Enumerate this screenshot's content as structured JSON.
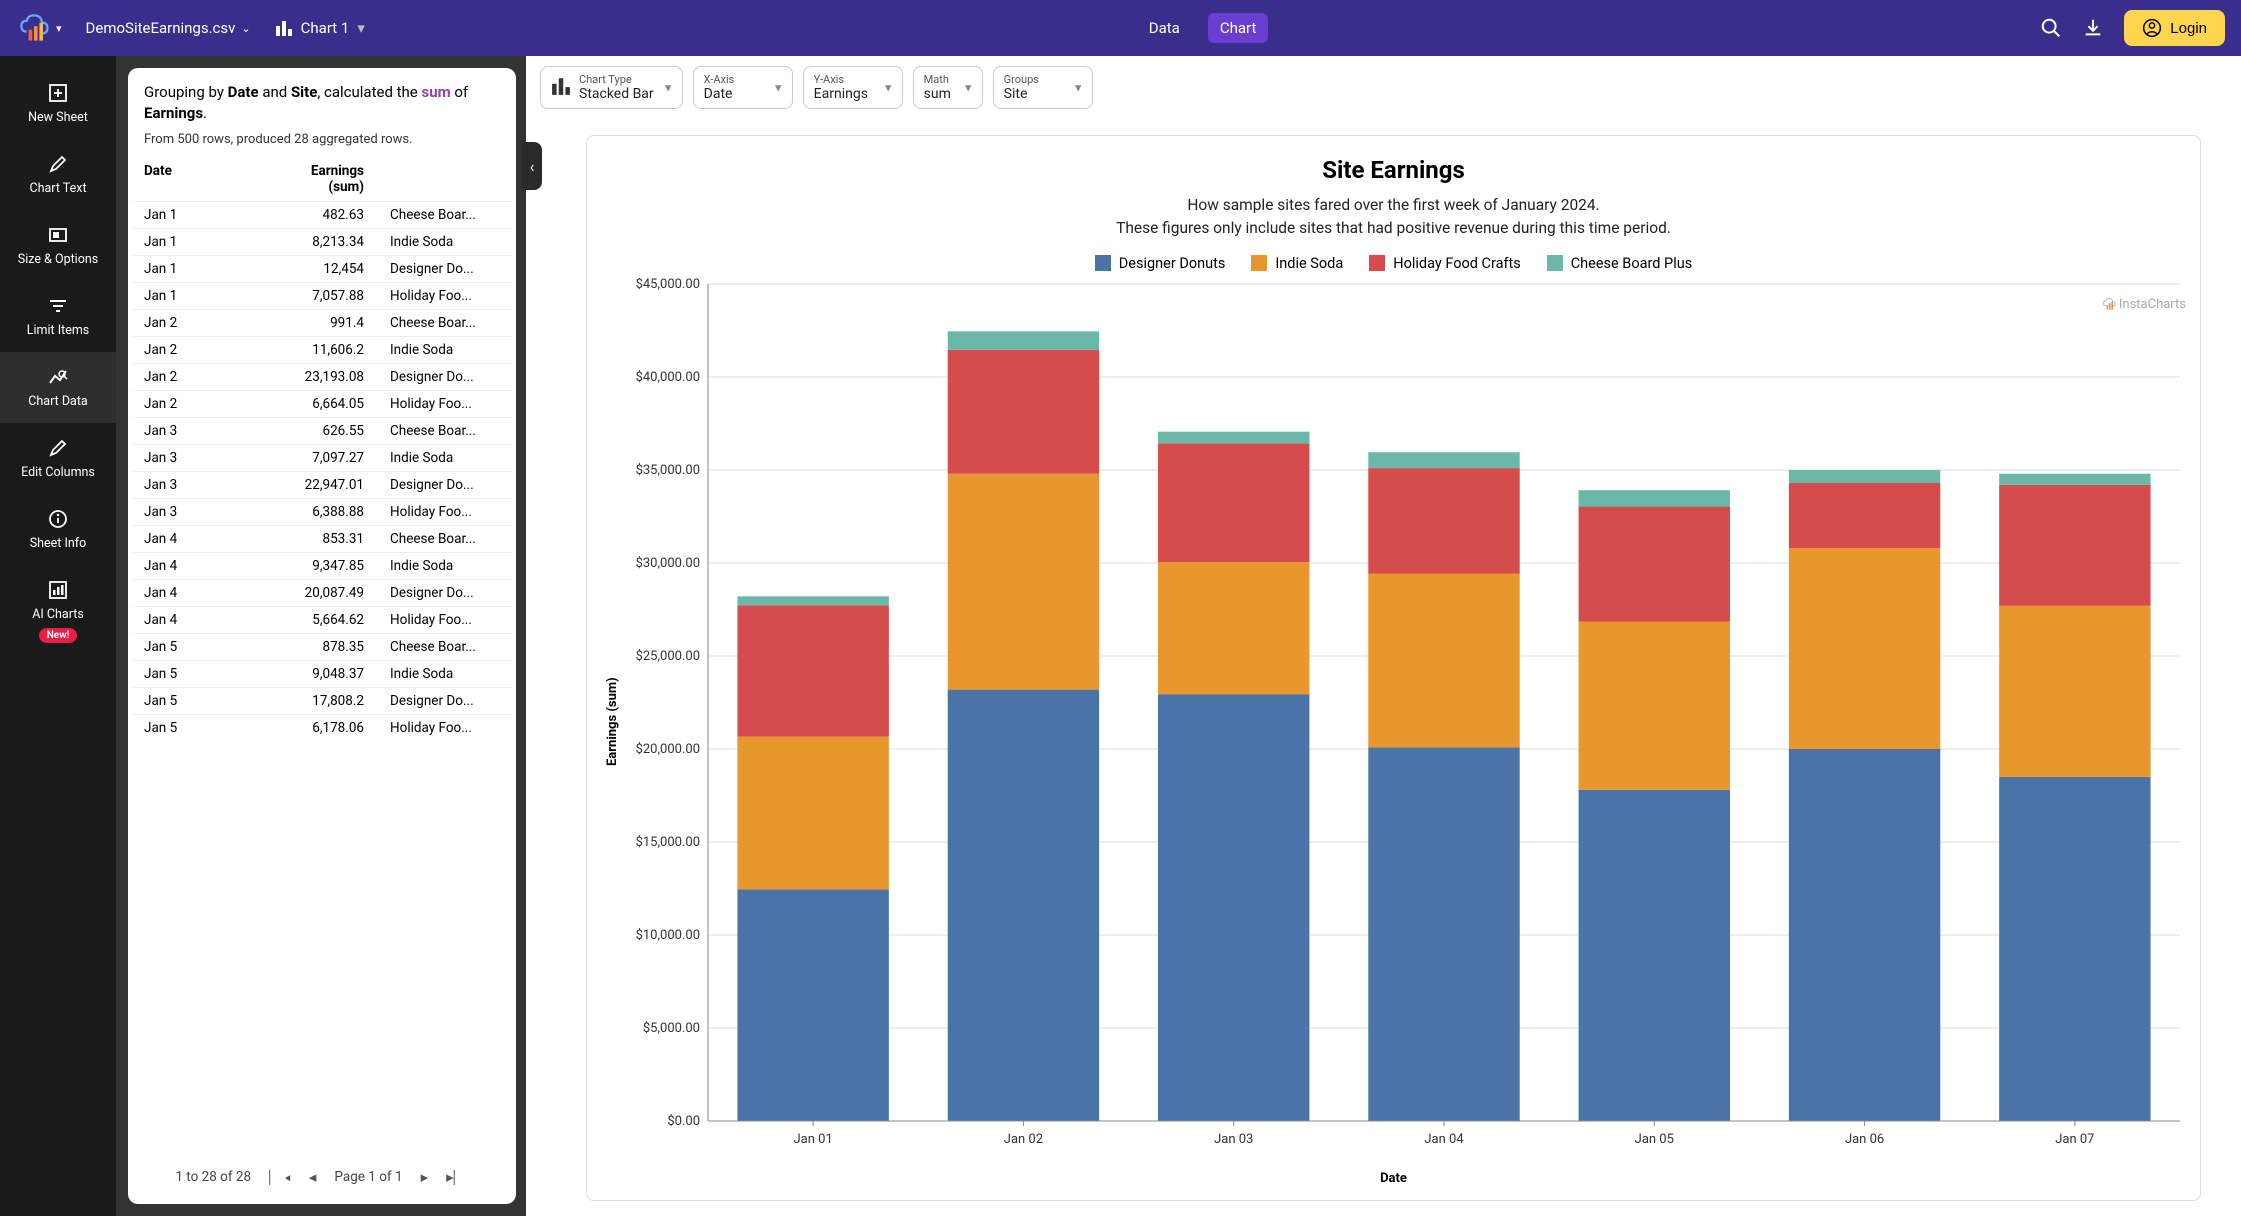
{
  "header": {
    "filename": "DemoSiteEarnings.csv",
    "chart_name": "Chart 1",
    "nav": {
      "data": "Data",
      "chart": "Chart"
    },
    "login": "Login"
  },
  "sidebar": [
    {
      "label": "New Sheet",
      "icon": "plus-sheet"
    },
    {
      "label": "Chart Text",
      "icon": "pencil"
    },
    {
      "label": "Size & Options",
      "icon": "aspect"
    },
    {
      "label": "Limit Items",
      "icon": "filter"
    },
    {
      "label": "Chart Data",
      "icon": "chart-data",
      "active": true
    },
    {
      "label": "Edit Columns",
      "icon": "pencil"
    },
    {
      "label": "Sheet Info",
      "icon": "info"
    },
    {
      "label": "AI Charts",
      "icon": "ai-chart",
      "badge": "New!"
    }
  ],
  "summary": {
    "pre": "Grouping by ",
    "b1": "Date",
    "and": " and ",
    "b2": "Site",
    "mid": ", calculated the ",
    "sum": "sum",
    "post": " of ",
    "b3": "Earnings",
    "dot": ".",
    "sub": "From 500 rows, produced 28 aggregated rows."
  },
  "table": {
    "headers": {
      "c1": "Date",
      "c2a": "Earnings",
      "c2b": "(sum)",
      "c3": ""
    },
    "rows": [
      [
        "Jan 1",
        "482.63",
        "Cheese Boar..."
      ],
      [
        "Jan 1",
        "8,213.34",
        "Indie Soda"
      ],
      [
        "Jan 1",
        "12,454",
        "Designer Do..."
      ],
      [
        "Jan 1",
        "7,057.88",
        "Holiday Foo..."
      ],
      [
        "Jan 2",
        "991.4",
        "Cheese Boar..."
      ],
      [
        "Jan 2",
        "11,606.2",
        "Indie Soda"
      ],
      [
        "Jan 2",
        "23,193.08",
        "Designer Do..."
      ],
      [
        "Jan 2",
        "6,664.05",
        "Holiday Foo..."
      ],
      [
        "Jan 3",
        "626.55",
        "Cheese Boar..."
      ],
      [
        "Jan 3",
        "7,097.27",
        "Indie Soda"
      ],
      [
        "Jan 3",
        "22,947.01",
        "Designer Do..."
      ],
      [
        "Jan 3",
        "6,388.88",
        "Holiday Foo..."
      ],
      [
        "Jan 4",
        "853.31",
        "Cheese Boar..."
      ],
      [
        "Jan 4",
        "9,347.85",
        "Indie Soda"
      ],
      [
        "Jan 4",
        "20,087.49",
        "Designer Do..."
      ],
      [
        "Jan 4",
        "5,664.62",
        "Holiday Foo..."
      ],
      [
        "Jan 5",
        "878.35",
        "Cheese Boar..."
      ],
      [
        "Jan 5",
        "9,048.37",
        "Indie Soda"
      ],
      [
        "Jan 5",
        "17,808.2",
        "Designer Do..."
      ],
      [
        "Jan 5",
        "6,178.06",
        "Holiday Foo..."
      ]
    ],
    "pagination": {
      "range": "1 to 28 of 28",
      "page": "Page 1 of 1"
    }
  },
  "controls": {
    "chart_type": {
      "label": "Chart Type",
      "value": "Stacked Bar"
    },
    "x_axis": {
      "label": "X-Axis",
      "value": "Date"
    },
    "y_axis": {
      "label": "Y-Axis",
      "value": "Earnings"
    },
    "math": {
      "label": "Math",
      "value": "sum"
    },
    "groups": {
      "label": "Groups",
      "value": "Site"
    }
  },
  "chart": {
    "title": "Site Earnings",
    "subtitle_l1": "How sample sites fared over the first week of January 2024.",
    "subtitle_l2": "These figures only include sites that had positive revenue during this time period.",
    "watermark": "InstaCharts",
    "y_label": "Earnings (sum)",
    "x_label": "Date",
    "type": "stacked-bar",
    "categories": [
      "Jan 01",
      "Jan 02",
      "Jan 03",
      "Jan 04",
      "Jan 05",
      "Jan 06",
      "Jan 07"
    ],
    "series": [
      {
        "name": "Designer Donuts",
        "color": "#4a74a8",
        "values": [
          12454,
          23193,
          22947,
          20087,
          17808,
          20000,
          18500
        ]
      },
      {
        "name": "Indie Soda",
        "color": "#e8972f",
        "values": [
          8213,
          11606,
          7097,
          9348,
          9048,
          10800,
          9200
        ]
      },
      {
        "name": "Holiday Food Crafts",
        "color": "#d64b4b",
        "values": [
          7058,
          6664,
          6389,
          5665,
          6178,
          3500,
          6500
        ]
      },
      {
        "name": "Cheese Board Plus",
        "color": "#6bb8a8",
        "values": [
          483,
          991,
          627,
          853,
          878,
          700,
          600
        ]
      }
    ],
    "ylim": [
      0,
      45000
    ],
    "ytick_step": 5000,
    "ytick_labels": [
      "$0.00",
      "$5,000.00",
      "$10,000.00",
      "$15,000.00",
      "$20,000.00",
      "$25,000.00",
      "$30,000.00",
      "$35,000.00",
      "$40,000.00",
      "$45,000.00"
    ],
    "background_color": "#ffffff",
    "grid_color": "#dddddd",
    "bar_group_width": 0.72,
    "title_fontsize": 24,
    "label_fontsize": 13
  }
}
